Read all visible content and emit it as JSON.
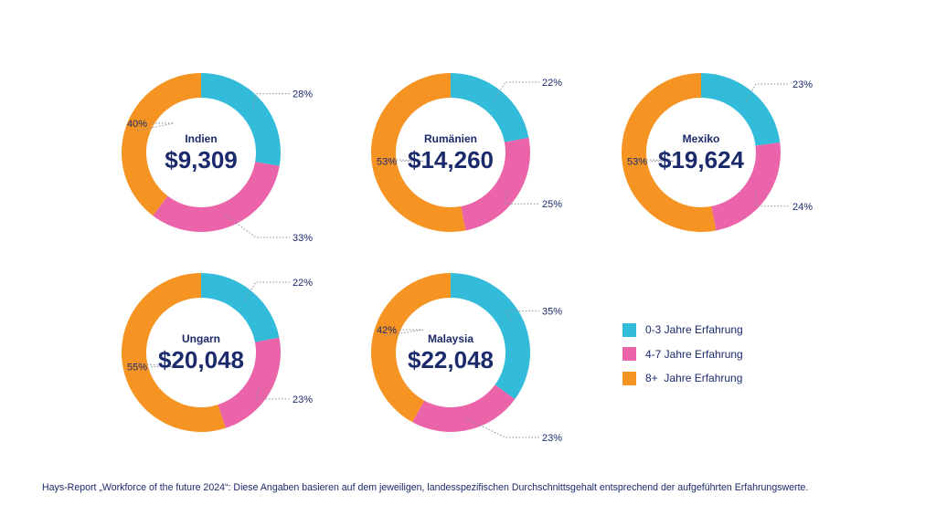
{
  "chart_data": {
    "type": "pie",
    "colors": {
      "0-3": "#33bcd9",
      "4-7": "#eb63a9",
      "8+": "#f59422",
      "text": "#1b2a6b",
      "leader": "#8a8f9c"
    },
    "charts": [
      {
        "country": "Indien",
        "amount": "$9,309",
        "values": [
          28,
          33,
          40
        ],
        "labels": [
          "28%",
          "33%",
          "40%"
        ]
      },
      {
        "country": "Rumänien",
        "amount": "$14,260",
        "values": [
          22,
          25,
          53
        ],
        "labels": [
          "22%",
          "25%",
          "53%"
        ]
      },
      {
        "country": "Mexiko",
        "amount": "$19,624",
        "values": [
          23,
          24,
          53
        ],
        "labels": [
          "23%",
          "24%",
          "53%"
        ]
      },
      {
        "country": "Ungarn",
        "amount": "$20,048",
        "values": [
          22,
          23,
          55
        ],
        "labels": [
          "22%",
          "23%",
          "55%"
        ]
      },
      {
        "country": "Malaysia",
        "amount": "$22,048",
        "values": [
          35,
          23,
          42
        ],
        "labels": [
          "35%",
          "23%",
          "42%"
        ]
      }
    ]
  },
  "legend": {
    "items": [
      {
        "label": "0-3 Jahre Erfahrung",
        "color": "#33bcd9"
      },
      {
        "label": "4-7 Jahre Erfahrung",
        "color": "#eb63a9"
      },
      {
        "label": "8+  Jahre Erfahrung",
        "color": "#f59422"
      }
    ]
  },
  "footnote": "Hays-Report „Workforce of the future 2024“:  Diese Angaben basieren auf dem jeweiligen, landesspezifischen Durchschnittsgehalt entsprechend der aufgeführten Erfahrungswerte."
}
